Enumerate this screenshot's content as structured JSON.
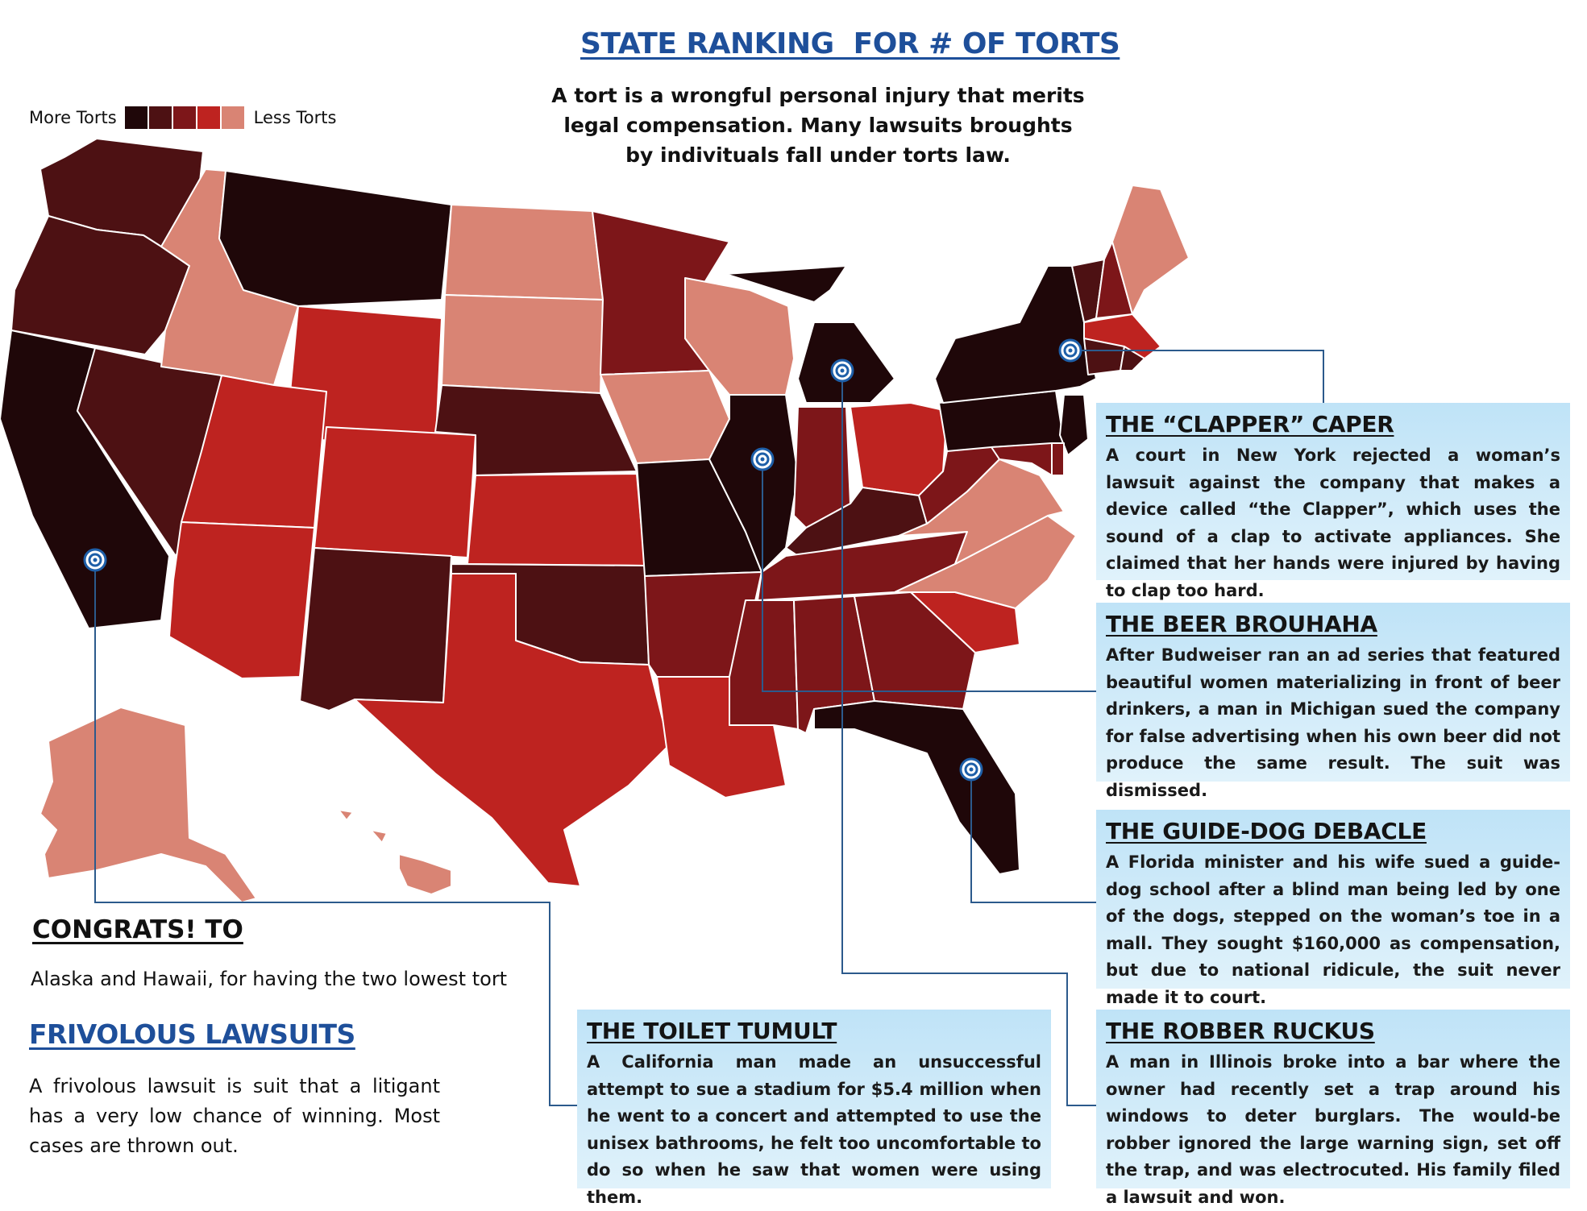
{
  "title": "STATE RANKING  FOR # OF TORTS",
  "intro": "A tort is a wrongful personal injury that merits legal compensation. Many lawsuits broughts by indivituals fall under torts law.",
  "legend": {
    "more_label": "More Torts",
    "less_label": "Less Torts",
    "colors": [
      "#1f0709",
      "#4d1113",
      "#7d1619",
      "#be2320",
      "#d98474"
    ]
  },
  "map": {
    "levels": {
      "WA": 1,
      "OR": 1,
      "CA": 0,
      "NV": 1,
      "ID": 4,
      "MT": 0,
      "WY": 3,
      "UT": 3,
      "AZ": 3,
      "CO": 3,
      "NM": 1,
      "ND": 4,
      "SD": 4,
      "NE": 1,
      "KS": 3,
      "OK": 1,
      "TX": 3,
      "MN": 2,
      "IA": 4,
      "MO": 0,
      "AR": 2,
      "LA": 3,
      "WI": 4,
      "IL": 0,
      "MI": 0,
      "IN": 2,
      "OH": 3,
      "KY": 1,
      "TN": 2,
      "MS": 2,
      "AL": 2,
      "GA": 2,
      "FL": 0,
      "SC": 3,
      "NC": 4,
      "VA": 4,
      "WV": 2,
      "PA": 0,
      "NY": 0,
      "VT": 1,
      "NH": 2,
      "ME": 4,
      "MA": 3,
      "CT": 1,
      "RI": 1,
      "NJ": 0,
      "DE": 2,
      "MD": 2,
      "AK": 4,
      "HI": 4
    }
  },
  "callouts": {
    "clapper": {
      "title": "THE “CLAPPER” CAPER",
      "body": "A court in New York rejected a woman’s lawsuit against the company that makes a device called “the Clapper”, which uses the sound of a clap to activate appliances. She claimed that her hands were injured by having to clap too hard."
    },
    "beer": {
      "title": "THE BEER BROUHAHA",
      "body": "After Budweiser ran an ad series that featured beautiful women materializing in front of beer drinkers, a man in Michigan sued the company for false advertising when his own beer did not produce the same result. The suit was dismissed."
    },
    "guide_dog": {
      "title": "THE GUIDE-DOG DEBACLE",
      "body": "A Florida minister and his wife sued a guide-dog school after a blind man being led by one of the dogs, stepped on the woman’s toe in a mall. They sought $160,000 as compensation, but due to national ridicule, the suit never made it to court."
    },
    "toilet": {
      "title": "THE TOILET TUMULT",
      "body": "A California man made an unsuccessful attempt to sue a stadium for $5.4 million when he went to a concert and attempted to use the unisex bathrooms, he felt too uncomfortable to do so when he saw that women were using them."
    },
    "robber": {
      "title": "THE ROBBER RUCKUS",
      "body": "A man in Illinois broke into a bar where the owner had recently set a trap around his windows to deter burglars. The would-be robber ignored the large warning sign, set off the trap, and was electrocuted. His family filed a lawsuit and won."
    }
  },
  "congrats": {
    "title": "CONGRATS! TO",
    "text": "Alaska and Hawaii, for having the two lowest tort"
  },
  "frivolous": {
    "title": "FRIVOLOUS LAWSUITS",
    "text": "A frivolous lawsuit is suit that a litigant has a very low chance of winning. Most cases are thrown out."
  },
  "colors": {
    "accent_title": "#1e4f9a",
    "callout_bg": "#c9e8f8",
    "leader_line": "#2c5a8c",
    "marker": "#1e5fa8"
  }
}
